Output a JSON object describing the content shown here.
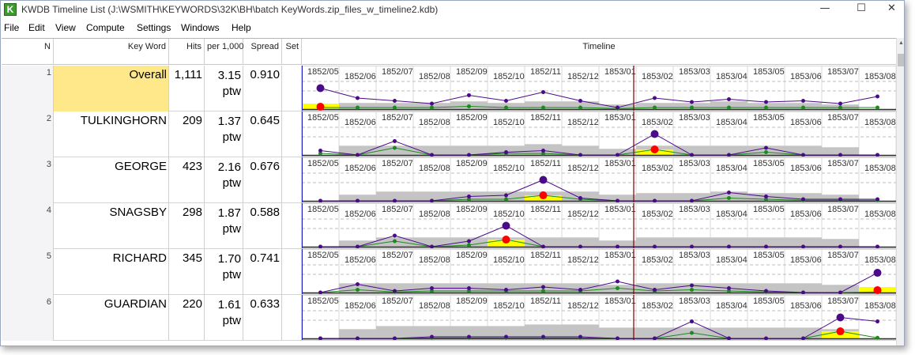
{
  "window": {
    "title": "KWDB Timeline List (J:\\WSMITH\\KEYWORDS\\32K\\BH\\batch KeyWords.zip_files_w_timeline2.kdb)",
    "app_icon_letter": "K",
    "controls": {
      "minimize": "—",
      "maximize": "☐",
      "close": "✕"
    }
  },
  "menu": [
    "File",
    "Edit",
    "View",
    "Compute",
    "Settings",
    "Windows",
    "Help"
  ],
  "columns": {
    "n": "N",
    "keyword": "Key Word",
    "hits": "Hits",
    "per": "per 1,000",
    "spread": "Spread",
    "set": "Set",
    "timeline": "Timeline"
  },
  "period_labels": [
    "1852/05",
    "1852/06",
    "1852/07",
    "1852/08",
    "1852/09",
    "1852/10",
    "1852/11",
    "1852/12",
    "1853/01",
    "1853/02",
    "1853/03",
    "1853/04",
    "1853/05",
    "1853/06",
    "1853/07",
    "1853/08"
  ],
  "colors": {
    "purple": "#4b0a8a",
    "green": "#1c8a1c",
    "red": "#ff0000",
    "yellow": "#ffff00",
    "gray": "#c4c4c4",
    "divider": "#7a0000",
    "highlight": "#ffe88a"
  },
  "rows": [
    {
      "n": "1",
      "word": "Overall",
      "hits": "1,111",
      "per": "3.15",
      "unit": "ptw",
      "spread": "0.910",
      "highlight": true,
      "purple": [
        0.68,
        0.36,
        0.27,
        0.18,
        0.45,
        0.27,
        0.55,
        0.27,
        0.05,
        0.36,
        0.23,
        0.32,
        0.23,
        0.27,
        0.18,
        0.41
      ],
      "green": [
        0.05,
        0.05,
        0.05,
        0.05,
        0.09,
        0.05,
        0.05,
        0.05,
        0.02,
        0.05,
        0.05,
        0.05,
        0.05,
        0.05,
        0.05,
        0.05
      ],
      "gray": [
        0.0,
        0.2,
        0.2,
        0.2,
        0.25,
        0.2,
        0.25,
        0.25,
        0.15,
        0.2,
        0.2,
        0.25,
        0.2,
        0.2,
        0.15,
        0.0
      ],
      "peak": 0
    },
    {
      "n": "2",
      "word": "TULKINGHORN",
      "hits": "209",
      "per": "1.37",
      "unit": "ptw",
      "spread": "0.645",
      "highlight": false,
      "purple": [
        0.14,
        0.0,
        0.45,
        0.0,
        0.0,
        0.09,
        0.14,
        0.0,
        0.0,
        0.68,
        0.0,
        0.0,
        0.23,
        0.0,
        0.0,
        0.0
      ],
      "green": [
        0.05,
        0.0,
        0.23,
        0.0,
        0.0,
        0.05,
        0.05,
        0.0,
        0.0,
        0.18,
        0.0,
        0.0,
        0.09,
        0.0,
        0.0,
        0.0
      ],
      "gray": [
        0.0,
        0.3,
        0.3,
        0.3,
        0.3,
        0.3,
        0.35,
        0.3,
        0.2,
        0.3,
        0.3,
        0.3,
        0.3,
        0.3,
        0.25,
        0.0
      ],
      "peak": 9
    },
    {
      "n": "3",
      "word": "GEORGE",
      "hits": "423",
      "per": "2.16",
      "unit": "ptw",
      "spread": "0.676",
      "highlight": false,
      "purple": [
        0.0,
        0.0,
        0.0,
        0.0,
        0.14,
        0.18,
        0.68,
        0.09,
        0.0,
        0.0,
        0.0,
        0.27,
        0.14,
        0.05,
        0.05,
        0.05
      ],
      "green": [
        0.0,
        0.0,
        0.0,
        0.0,
        0.05,
        0.05,
        0.18,
        0.05,
        0.0,
        0.0,
        0.0,
        0.09,
        0.05,
        0.02,
        0.02,
        0.02
      ],
      "gray": [
        0.0,
        0.2,
        0.3,
        0.3,
        0.3,
        0.3,
        0.3,
        0.3,
        0.2,
        0.25,
        0.25,
        0.3,
        0.25,
        0.25,
        0.2,
        0.0
      ],
      "peak": 6
    },
    {
      "n": "4",
      "word": "SNAGSBY",
      "hits": "298",
      "per": "1.87",
      "unit": "ptw",
      "spread": "0.588",
      "highlight": false,
      "purple": [
        0.0,
        0.0,
        0.36,
        0.0,
        0.18,
        0.68,
        0.0,
        0.0,
        0.0,
        0.0,
        0.0,
        0.0,
        0.0,
        0.0,
        0.0,
        0.0
      ],
      "green": [
        0.0,
        0.0,
        0.18,
        0.0,
        0.05,
        0.23,
        0.0,
        0.0,
        0.0,
        0.0,
        0.0,
        0.0,
        0.0,
        0.0,
        0.0,
        0.0
      ],
      "gray": [
        0.0,
        0.2,
        0.3,
        0.3,
        0.3,
        0.3,
        0.3,
        0.3,
        0.2,
        0.3,
        0.3,
        0.3,
        0.3,
        0.3,
        0.25,
        0.0
      ],
      "peak": 5
    },
    {
      "n": "5",
      "word": "RICHARD",
      "hits": "345",
      "per": "1.70",
      "unit": "ptw",
      "spread": "0.741",
      "highlight": false,
      "purple": [
        0.0,
        0.27,
        0.05,
        0.14,
        0.14,
        0.09,
        0.18,
        0.09,
        0.36,
        0.09,
        0.23,
        0.14,
        0.05,
        0.0,
        0.0,
        0.64
      ],
      "green": [
        0.0,
        0.09,
        0.02,
        0.05,
        0.05,
        0.05,
        0.05,
        0.05,
        0.14,
        0.05,
        0.09,
        0.05,
        0.02,
        0.0,
        0.0,
        0.02
      ],
      "gray": [
        0.0,
        0.3,
        0.3,
        0.3,
        0.3,
        0.3,
        0.3,
        0.3,
        0.25,
        0.3,
        0.3,
        0.3,
        0.3,
        0.3,
        0.25,
        0.0
      ],
      "peak": 15
    },
    {
      "n": "6",
      "word": "GUARDIAN",
      "hits": "220",
      "per": "1.61",
      "unit": "ptw",
      "spread": "0.633",
      "highlight": false,
      "purple": [
        0.0,
        0.0,
        0.0,
        0.05,
        0.05,
        0.05,
        0.05,
        0.05,
        0.0,
        0.0,
        0.55,
        0.0,
        0.0,
        0.0,
        0.68,
        0.55
      ],
      "green": [
        0.0,
        0.0,
        0.0,
        0.02,
        0.02,
        0.02,
        0.02,
        0.02,
        0.0,
        0.0,
        0.18,
        0.0,
        0.0,
        0.0,
        0.23,
        0.02
      ],
      "gray": [
        0.0,
        0.3,
        0.4,
        0.4,
        0.4,
        0.4,
        0.45,
        0.45,
        0.35,
        0.35,
        0.35,
        0.35,
        0.35,
        0.35,
        0.3,
        0.0
      ],
      "peak": 14
    }
  ]
}
